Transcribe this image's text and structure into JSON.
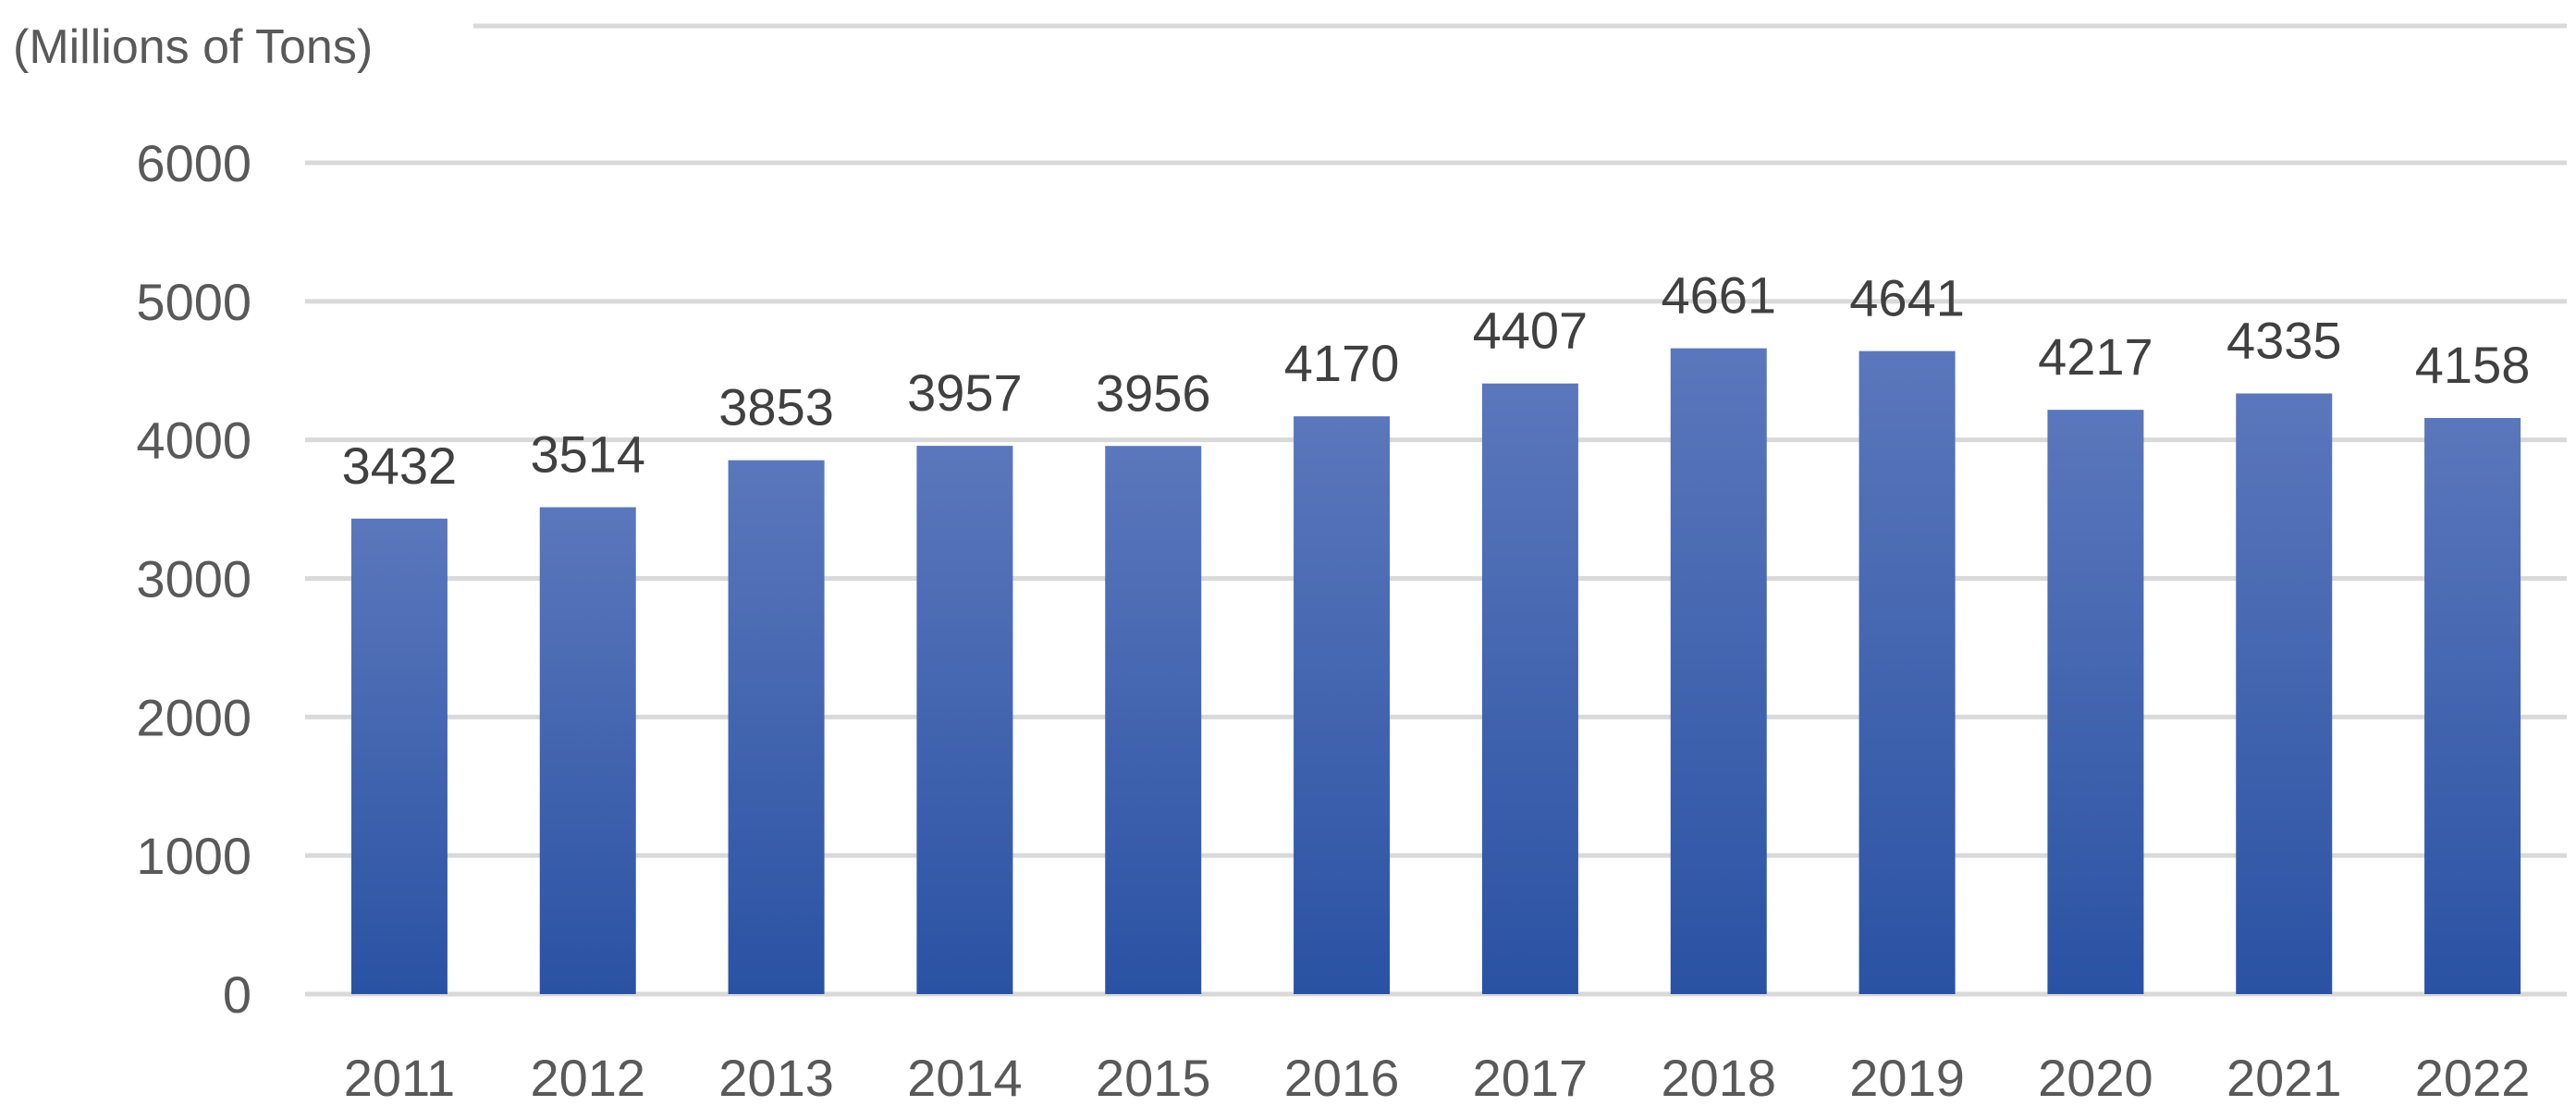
{
  "chart_data": {
    "type": "bar",
    "title": "",
    "xlabel": "",
    "ylabel": "(Millions of Tons)",
    "categories": [
      "2011",
      "2012",
      "2013",
      "2014",
      "2015",
      "2016",
      "2017",
      "2018",
      "2019",
      "2020",
      "2021",
      "2022"
    ],
    "values": [
      3432,
      3514,
      3853,
      3957,
      3956,
      4170,
      4407,
      4661,
      4641,
      4217,
      4335,
      4158
    ],
    "data_labels": [
      "3432",
      "3514",
      "3853",
      "3957",
      "3956",
      "4170",
      "4407",
      "4661",
      "4641",
      "4217",
      "4335",
      "4158"
    ],
    "ylim": [
      0,
      6000
    ],
    "yticks": [
      0,
      1000,
      2000,
      3000,
      4000,
      5000,
      6000
    ],
    "ytick_labels": [
      "0",
      "1000",
      "2000",
      "3000",
      "4000",
      "5000",
      "6000"
    ],
    "grid": true,
    "legend": "none",
    "colors": {
      "bar_top": "#5B77BC",
      "bar_bottom": "#2A52A3",
      "grid": "#D9D9D9",
      "tick_text": "#595959",
      "label_text": "#404040"
    }
  }
}
